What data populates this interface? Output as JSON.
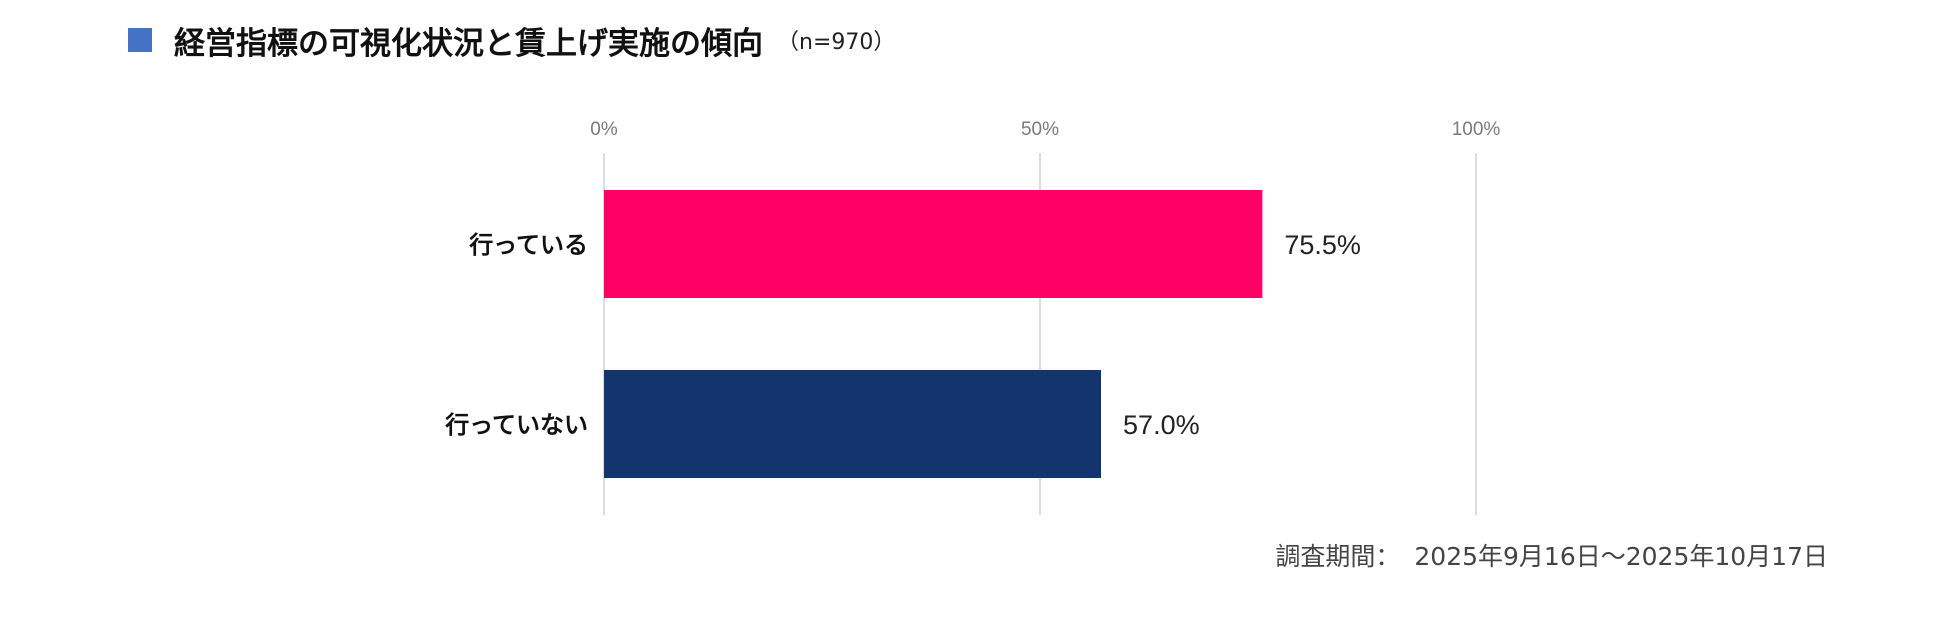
{
  "title": "経営指標の可視化状況と賃上げ実施の傾向",
  "title_note": "（n=970）",
  "period_label": "調査期間：",
  "period_value": "2025年9月16日～2025年10月17日",
  "colors": {
    "title_marker": "#4472c4",
    "gridline": "#d0d0d0"
  },
  "chart_data": {
    "type": "bar",
    "orientation": "horizontal",
    "categories": [
      "行っている",
      "行っていない"
    ],
    "values": [
      75.5,
      57.0
    ],
    "value_labels": [
      "75.5%",
      "57.0%"
    ],
    "colors": [
      "#ff0066",
      "#14346e"
    ],
    "xlim": [
      0,
      100
    ],
    "ticks": [
      0,
      50,
      100
    ],
    "tick_labels": [
      "0%",
      "50%",
      "100%"
    ],
    "tick_position": "top",
    "grid": true,
    "legend": "none"
  }
}
